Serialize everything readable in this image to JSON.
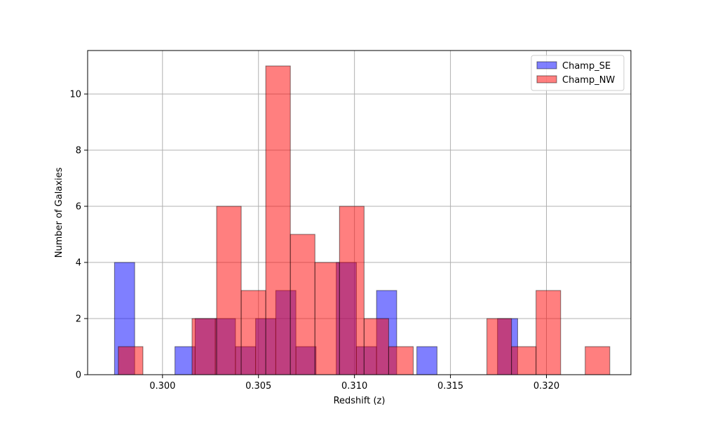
{
  "chart_data": {
    "type": "bar",
    "subtype": "overlapping-histogram",
    "title": "",
    "xlabel": "Redshift (z)",
    "ylabel": "Number of Galaxies",
    "xlim": [
      0.2961,
      0.3244
    ],
    "ylim": [
      0,
      11.55
    ],
    "x_ticks": [
      0.3,
      0.305,
      0.31,
      0.315,
      0.32
    ],
    "x_tick_labels": [
      "0.300",
      "0.305",
      "0.310",
      "0.315",
      "0.320"
    ],
    "y_ticks": [
      0,
      2,
      4,
      6,
      8,
      10
    ],
    "y_tick_labels": [
      "0",
      "2",
      "4",
      "6",
      "8",
      "10"
    ],
    "grid": true,
    "legend_position": "top-right",
    "series": [
      {
        "name": "Champ_SE",
        "color": "#0000ff",
        "alpha": 0.5,
        "bins": [
          {
            "x0": 0.2975,
            "x1": 0.29855,
            "count": 4
          },
          {
            "x0": 0.29855,
            "x1": 0.2996,
            "count": 0
          },
          {
            "x0": 0.2996,
            "x1": 0.30065,
            "count": 0
          },
          {
            "x0": 0.30065,
            "x1": 0.3017,
            "count": 1
          },
          {
            "x0": 0.3017,
            "x1": 0.30275,
            "count": 2
          },
          {
            "x0": 0.30275,
            "x1": 0.3038,
            "count": 2
          },
          {
            "x0": 0.3038,
            "x1": 0.30485,
            "count": 1
          },
          {
            "x0": 0.30485,
            "x1": 0.3059,
            "count": 2
          },
          {
            "x0": 0.3059,
            "x1": 0.30695,
            "count": 3
          },
          {
            "x0": 0.30695,
            "x1": 0.308,
            "count": 1
          },
          {
            "x0": 0.308,
            "x1": 0.30905,
            "count": 0
          },
          {
            "x0": 0.30905,
            "x1": 0.3101,
            "count": 4
          },
          {
            "x0": 0.3101,
            "x1": 0.31115,
            "count": 1
          },
          {
            "x0": 0.31115,
            "x1": 0.3122,
            "count": 3
          },
          {
            "x0": 0.3122,
            "x1": 0.31325,
            "count": 0
          },
          {
            "x0": 0.31325,
            "x1": 0.3143,
            "count": 1
          },
          {
            "x0": 0.3143,
            "x1": 0.31535,
            "count": 0
          },
          {
            "x0": 0.31535,
            "x1": 0.3164,
            "count": 0
          },
          {
            "x0": 0.3164,
            "x1": 0.31745,
            "count": 0
          },
          {
            "x0": 0.31745,
            "x1": 0.3185,
            "count": 2
          }
        ]
      },
      {
        "name": "Champ_NW",
        "color": "#ff0000",
        "alpha": 0.5,
        "bins": [
          {
            "x0": 0.2977,
            "x1": 0.29898,
            "count": 1
          },
          {
            "x0": 0.29898,
            "x1": 0.30026,
            "count": 0
          },
          {
            "x0": 0.30026,
            "x1": 0.30154,
            "count": 0
          },
          {
            "x0": 0.30154,
            "x1": 0.30282,
            "count": 2
          },
          {
            "x0": 0.30282,
            "x1": 0.3041,
            "count": 6
          },
          {
            "x0": 0.3041,
            "x1": 0.30538,
            "count": 3
          },
          {
            "x0": 0.30538,
            "x1": 0.30666,
            "count": 11
          },
          {
            "x0": 0.30666,
            "x1": 0.30794,
            "count": 5
          },
          {
            "x0": 0.30794,
            "x1": 0.30922,
            "count": 4
          },
          {
            "x0": 0.30922,
            "x1": 0.3105,
            "count": 6
          },
          {
            "x0": 0.3105,
            "x1": 0.31178,
            "count": 2
          },
          {
            "x0": 0.31178,
            "x1": 0.31306,
            "count": 1
          },
          {
            "x0": 0.31306,
            "x1": 0.31434,
            "count": 0
          },
          {
            "x0": 0.31434,
            "x1": 0.31562,
            "count": 0
          },
          {
            "x0": 0.31562,
            "x1": 0.3169,
            "count": 0
          },
          {
            "x0": 0.3169,
            "x1": 0.31818,
            "count": 2
          },
          {
            "x0": 0.31818,
            "x1": 0.31946,
            "count": 1
          },
          {
            "x0": 0.31946,
            "x1": 0.32074,
            "count": 3
          },
          {
            "x0": 0.32074,
            "x1": 0.32202,
            "count": 0
          },
          {
            "x0": 0.32202,
            "x1": 0.3233,
            "count": 1
          }
        ]
      }
    ]
  }
}
